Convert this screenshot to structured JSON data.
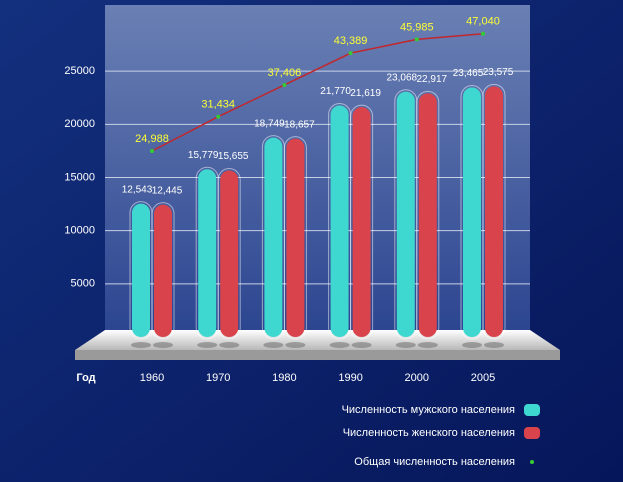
{
  "chart_data": {
    "type": "bar",
    "x_label": "Год",
    "categories": [
      "1960",
      "1970",
      "1980",
      "1990",
      "2000",
      "2005"
    ],
    "series": [
      {
        "name": "Численность мужского населения",
        "color": "#3fd8d0",
        "values": [
          12543,
          15779,
          18749,
          21770,
          23068,
          23465
        ],
        "value_labels": [
          "12,543",
          "15,779",
          "18,749",
          "21,770",
          "23,068",
          "23,465"
        ]
      },
      {
        "name": "Численность женского населения",
        "color": "#d9444c",
        "values": [
          12445,
          15655,
          18657,
          21619,
          22917,
          23575
        ],
        "value_labels": [
          "12,445",
          "15,655",
          "18,657",
          "21,619",
          "22,917",
          "23,575"
        ]
      },
      {
        "name": "Общая численность населения",
        "type": "line",
        "axis": "y2",
        "color": "#c0282d",
        "marker_color": "#33cc33",
        "values": [
          24988,
          31434,
          37406,
          43389,
          45985,
          47040
        ],
        "value_labels": [
          "24,988",
          "31,434",
          "37,406",
          "43,389",
          "45,985",
          "47,040"
        ]
      }
    ],
    "ylim": [
      0,
      30000
    ],
    "yticks": [
      5000,
      10000,
      15000,
      20000,
      25000
    ],
    "y2lim": [
      -10000,
      50000
    ],
    "grid": true
  }
}
